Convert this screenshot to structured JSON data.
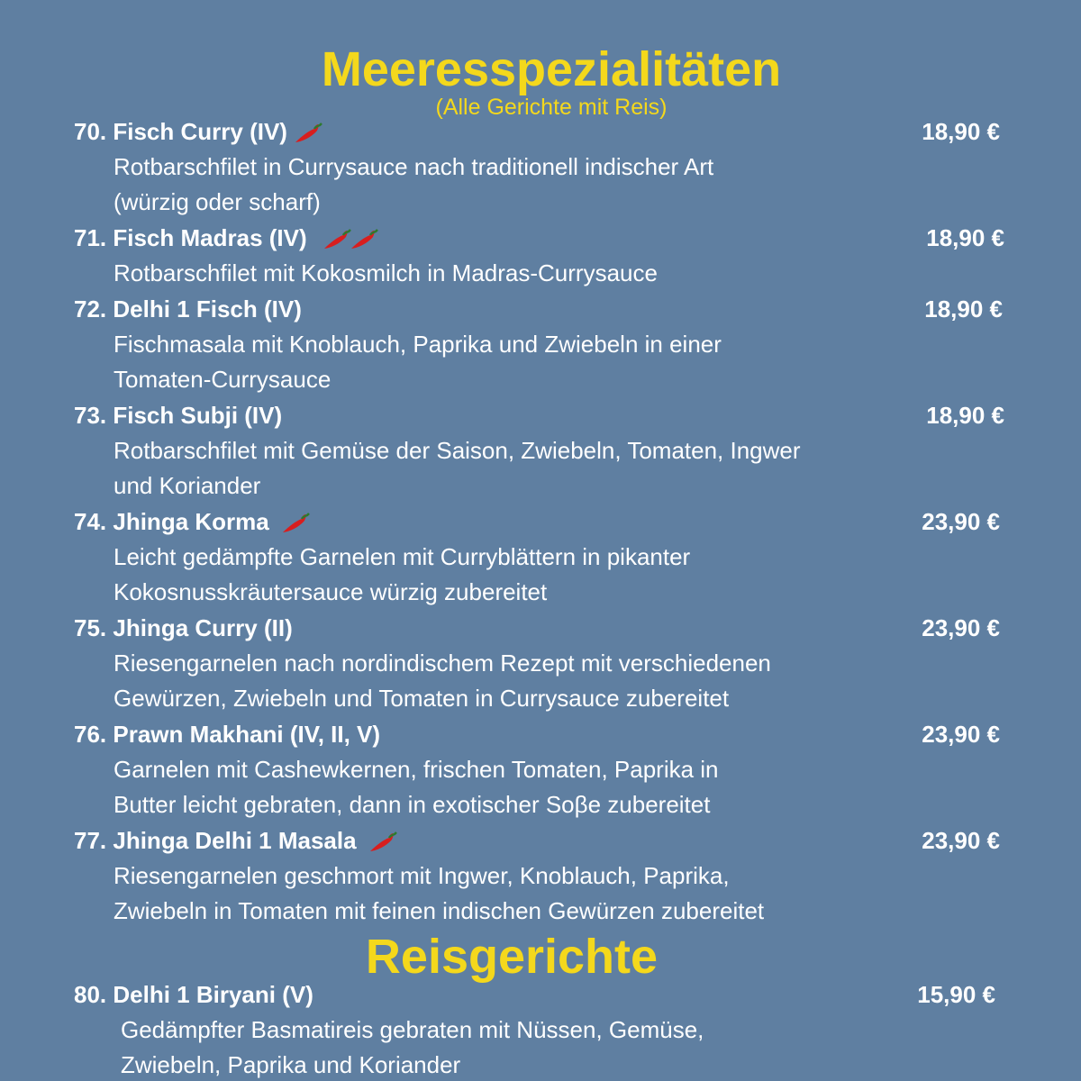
{
  "sections": [
    {
      "title": "Meeresspezialitäten",
      "subtitle": "(Alle Gerichte mit Reis)",
      "items": [
        {
          "name": "70. Fisch Curry (IV)",
          "price": "18,90 €",
          "description": [
            "Rotbarschfilet in Currysauce nach traditionell indischer Art",
            "(würzig oder scharf)"
          ]
        },
        {
          "name": "71. Fisch Madras (IV)",
          "price": "18,90 €",
          "description": [
            "Rotbarschfilet mit Kokosmilch in Madras-Currysauce"
          ]
        },
        {
          "name": "72. Delhi 1 Fisch (IV)",
          "price": "18,90 €",
          "description": [
            "Fischmasala mit Knoblauch, Paprika und Zwiebeln in einer",
            "Tomaten-Currysauce"
          ]
        },
        {
          "name": "73. Fisch Subji (IV)",
          "price": "18,90 €",
          "description": [
            "Rotbarschfilet mit Gemüse der Saison, Zwiebeln, Tomaten, Ingwer",
            "und Koriander"
          ]
        },
        {
          "name": "74. Jhinga Korma",
          "price": "23,90 €",
          "description": [
            "Leicht gedämpfte Garnelen mit Curryblättern in pikanter",
            "Kokosnusskräutersauce würzig zubereitet"
          ]
        },
        {
          "name": "75. Jhinga Curry (II)",
          "price": "23,90 €",
          "description": [
            "Riesengarnelen nach nordindischem Rezept mit verschiedenen",
            "Gewürzen, Zwiebeln und Tomaten in Currysauce zubereitet"
          ]
        },
        {
          "name": "76. Prawn Makhani (IV, II, V)",
          "price": "23,90 €",
          "description": [
            "Garnelen mit Cashewkernen, frischen Tomaten, Paprika in",
            "Butter leicht gebraten, dann in exotischer Soβe zubereitet"
          ]
        },
        {
          "name": "77. Jhinga Delhi 1 Masala",
          "price": "23,90 €",
          "description": [
            "Riesengarnelen geschmort mit Ingwer, Knoblauch, Paprika,",
            "Zwiebeln in Tomaten mit feinen indischen Gewürzen zubereitet"
          ]
        }
      ]
    },
    {
      "title": "Reisgerichte",
      "items": [
        {
          "name": "80. Delhi 1 Biryani (V)",
          "price": "15,90 €",
          "description": [
            "Gedämpfter Basmatireis gebraten mit Nüssen, Gemüse,",
            "Zwiebeln, Paprika und Koriander"
          ]
        }
      ]
    }
  ]
}
